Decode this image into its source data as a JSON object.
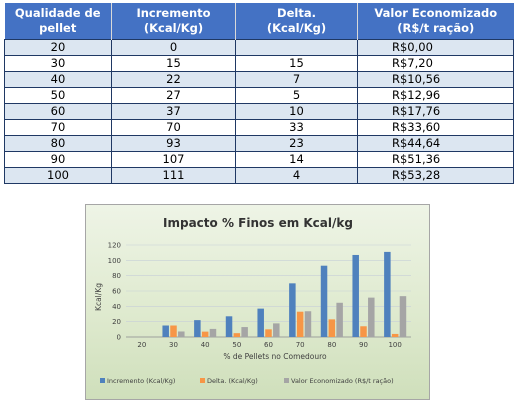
{
  "table": {
    "headers": [
      "Qualidade de pellet",
      "Incremento (Kcal/Kg)",
      "Delta. (Kcal/Kg)",
      "Valor Economizado (R$/t ração)"
    ],
    "header_lines": [
      [
        "Qualidade de",
        "pellet"
      ],
      [
        "Incremento",
        "(Kcal/Kg)"
      ],
      [
        "Delta.",
        "(Kcal/Kg)"
      ],
      [
        "Valor Economizado",
        "(R$/t ração)"
      ]
    ],
    "rows": [
      [
        "20",
        "0",
        "",
        "R$0,00"
      ],
      [
        "30",
        "15",
        "15",
        "R$7,20"
      ],
      [
        "40",
        "22",
        "7",
        "R$10,56"
      ],
      [
        "50",
        "27",
        "5",
        "R$12,96"
      ],
      [
        "60",
        "37",
        "10",
        "R$17,76"
      ],
      [
        "70",
        "70",
        "33",
        "R$33,60"
      ],
      [
        "80",
        "93",
        "23",
        "R$44,64"
      ],
      [
        "90",
        "107",
        "14",
        "R$51,36"
      ],
      [
        "100",
        "111",
        "4",
        "R$53,28"
      ]
    ]
  },
  "colors": {
    "header_bg": "#4472c4",
    "row_alt": "#dce6f1",
    "series": [
      "#4f81bd",
      "#f79646",
      "#a5a5a5"
    ]
  },
  "chart_data": {
    "type": "bar",
    "title": "Impacto % Finos em Kcal/kg",
    "xlabel": "% de Pellets no Comedouro",
    "ylabel": "Kcal/Kg",
    "categories": [
      "20",
      "30",
      "40",
      "50",
      "60",
      "70",
      "80",
      "90",
      "100"
    ],
    "yticks": [
      0,
      20,
      40,
      60,
      80,
      100,
      120
    ],
    "ylim": [
      0,
      120
    ],
    "grid": true,
    "legend_position": "bottom",
    "series": [
      {
        "name": "Incremento (Kcal/Kg)",
        "values": [
          0,
          15,
          22,
          27,
          37,
          70,
          93,
          107,
          111
        ]
      },
      {
        "name": "Delta. (Kcal/Kg)",
        "values": [
          0,
          15,
          7,
          5,
          10,
          33,
          23,
          14,
          4
        ]
      },
      {
        "name": "Valor Economizado (R$/t ração)",
        "values": [
          0,
          7.2,
          10.56,
          12.96,
          17.76,
          33.6,
          44.64,
          51.36,
          53.28
        ]
      }
    ]
  }
}
